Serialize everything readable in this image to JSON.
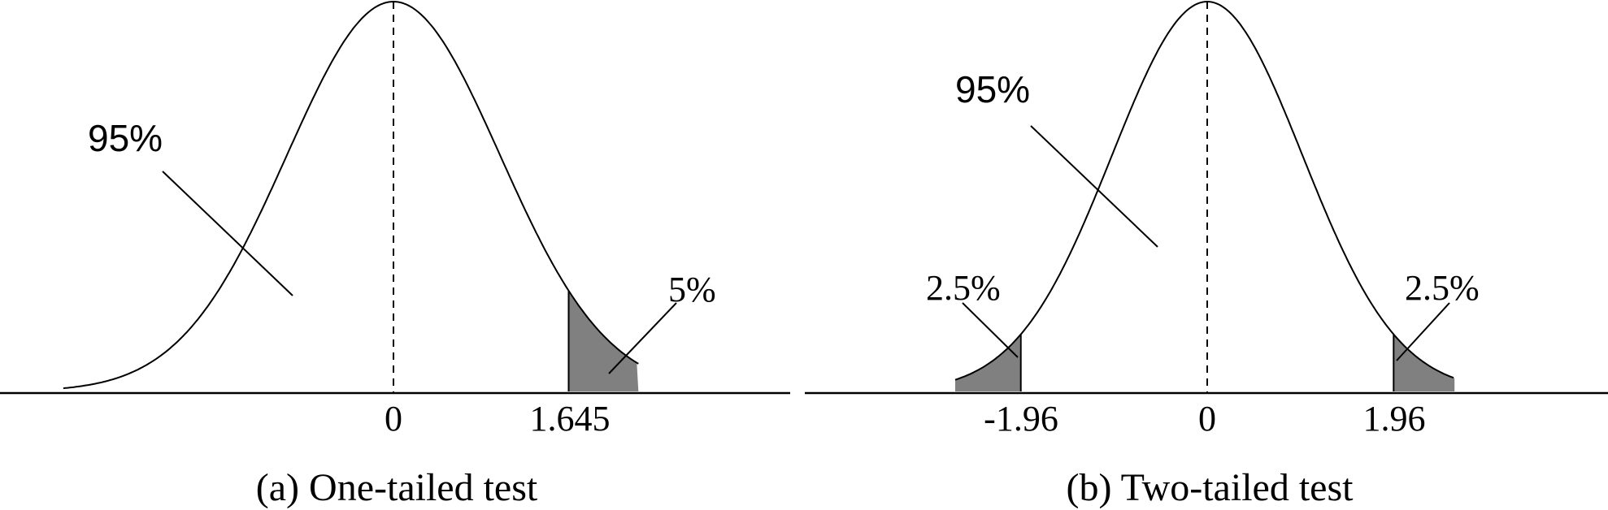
{
  "tail_fill_color": "#808080",
  "panels": [
    {
      "id": "one-tailed",
      "caption": "(a) One-tailed test",
      "center_label": "95%",
      "tails": [
        {
          "side": "right",
          "label": "5%",
          "cutoff": 1.645,
          "cutoff_label": "1.645"
        }
      ],
      "ticks": [
        {
          "value": 0,
          "label": "0"
        },
        {
          "value": 1.645,
          "label": "1.645"
        }
      ]
    },
    {
      "id": "two-tailed",
      "caption": "(b) Two-tailed test",
      "center_label": "95%",
      "tails": [
        {
          "side": "left",
          "label": "2.5%",
          "cutoff": -1.96,
          "cutoff_label": "-1.96"
        },
        {
          "side": "right",
          "label": "2.5%",
          "cutoff": 1.96,
          "cutoff_label": "1.96"
        }
      ],
      "ticks": [
        {
          "value": -1.96,
          "label": "-1.96"
        },
        {
          "value": 0,
          "label": "0"
        },
        {
          "value": 1.96,
          "label": "1.96"
        }
      ]
    }
  ]
}
